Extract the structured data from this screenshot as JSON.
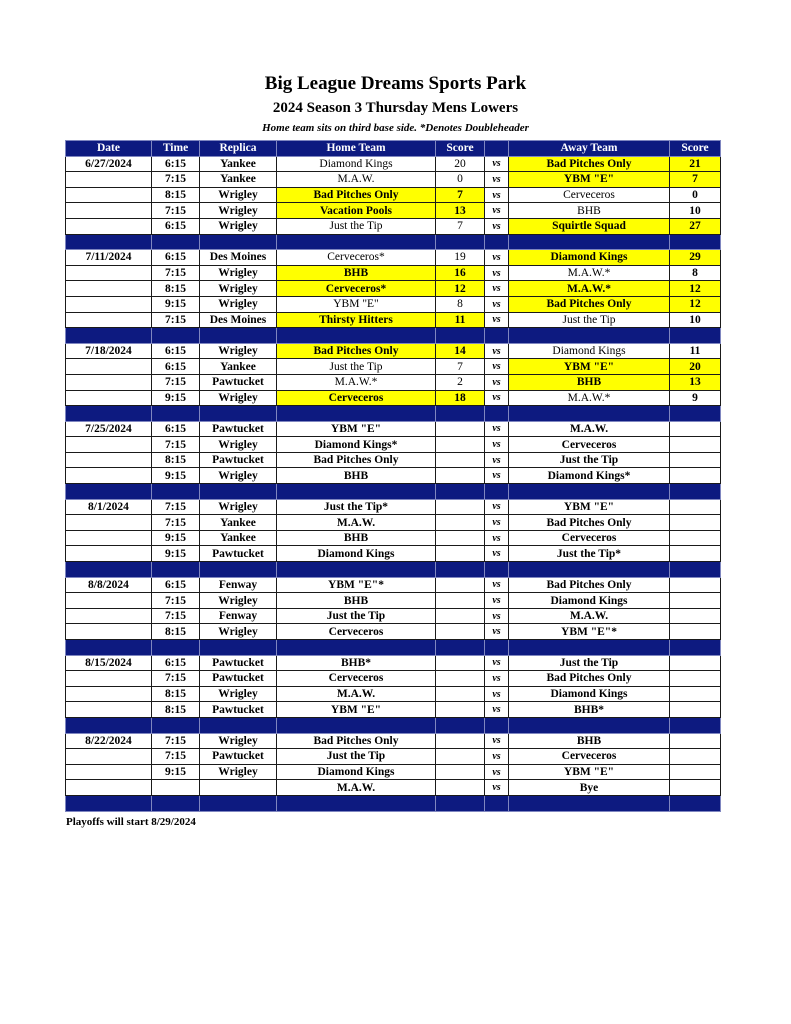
{
  "title": "Big League Dreams Sports Park",
  "subtitle": "2024 Season 3 Thursday Mens Lowers",
  "note": "Home team sits on third base side.  *Denotes Doubleheader",
  "headers": [
    "Date",
    "Time",
    "Replica",
    "Home Team",
    "Score",
    "",
    "Away Team",
    "Score"
  ],
  "vs_label": "vs",
  "footer": "Playoffs will start 8/29/2024",
  "highlight_color": "#ffff00",
  "header_color": "#0d1a80",
  "weeks": [
    {
      "games": [
        {
          "date": "6/27/2024",
          "time": "6:15",
          "replica": "Yankee",
          "home": "Diamond Kings",
          "home_score": "20",
          "away": "Bad Pitches Only",
          "away_score": "21",
          "winner": "away"
        },
        {
          "date": "",
          "time": "7:15",
          "replica": "Yankee",
          "home": "M.A.W.",
          "home_score": "0",
          "away": "YBM \"E\"",
          "away_score": "7",
          "winner": "away"
        },
        {
          "date": "",
          "time": "8:15",
          "replica": "Wrigley",
          "home": "Bad Pitches Only",
          "home_score": "7",
          "away": "Cerveceros",
          "away_score": "0",
          "winner": "home"
        },
        {
          "date": "",
          "time": "7:15",
          "replica": "Wrigley",
          "home": "Vacation Pools",
          "home_score": "13",
          "away": "BHB",
          "away_score": "10",
          "winner": "home"
        },
        {
          "date": "",
          "time": "6:15",
          "replica": "Wrigley",
          "home": "Just the Tip",
          "home_score": "7",
          "away": "Squirtle Squad",
          "away_score": "27",
          "winner": "away"
        }
      ]
    },
    {
      "games": [
        {
          "date": "7/11/2024",
          "time": "6:15",
          "replica": "Des Moines",
          "home": "Cerveceros*",
          "home_score": "19",
          "away": "Diamond Kings",
          "away_score": "29",
          "winner": "away"
        },
        {
          "date": "",
          "time": "7:15",
          "replica": "Wrigley",
          "home": "BHB",
          "home_score": "16",
          "away": "M.A.W.*",
          "away_score": "8",
          "winner": "home"
        },
        {
          "date": "",
          "time": "8:15",
          "replica": "Wrigley",
          "home": "Cerveceros*",
          "home_score": "12",
          "away": "M.A.W.*",
          "away_score": "12",
          "winner": "tie"
        },
        {
          "date": "",
          "time": "9:15",
          "replica": "Wrigley",
          "home": "YBM \"E\"",
          "home_score": "8",
          "away": "Bad Pitches Only",
          "away_score": "12",
          "winner": "away"
        },
        {
          "date": "",
          "time": "7:15",
          "replica": "Des Moines",
          "home": "Thirsty Hitters",
          "home_score": "11",
          "away": "Just the Tip",
          "away_score": "10",
          "winner": "home"
        }
      ]
    },
    {
      "games": [
        {
          "date": "7/18/2024",
          "time": "6:15",
          "replica": "Wrigley",
          "home": "Bad Pitches Only",
          "home_score": "14",
          "away": "Diamond Kings",
          "away_score": "11",
          "winner": "home"
        },
        {
          "date": "",
          "time": "6:15",
          "replica": "Yankee",
          "home": "Just the Tip",
          "home_score": "7",
          "away": "YBM \"E\"",
          "away_score": "20",
          "winner": "away"
        },
        {
          "date": "",
          "time": "7:15",
          "replica": "Pawtucket",
          "home": "M.A.W.*",
          "home_score": "2",
          "away": "BHB",
          "away_score": "13",
          "winner": "away"
        },
        {
          "date": "",
          "time": "9:15",
          "replica": "Wrigley",
          "home": "Cerveceros",
          "home_score": "18",
          "away": "M.A.W.*",
          "away_score": "9",
          "winner": "home"
        }
      ]
    },
    {
      "games": [
        {
          "date": "7/25/2024",
          "time": "6:15",
          "replica": "Pawtucket",
          "home": "YBM \"E\"",
          "home_score": "",
          "away": "M.A.W.",
          "away_score": "",
          "winner": ""
        },
        {
          "date": "",
          "time": "7:15",
          "replica": "Wrigley",
          "home": "Diamond Kings*",
          "home_score": "",
          "away": "Cerveceros",
          "away_score": "",
          "winner": ""
        },
        {
          "date": "",
          "time": "8:15",
          "replica": "Pawtucket",
          "home": "Bad Pitches Only",
          "home_score": "",
          "away": "Just the Tip",
          "away_score": "",
          "winner": ""
        },
        {
          "date": "",
          "time": "9:15",
          "replica": "Wrigley",
          "home": "BHB",
          "home_score": "",
          "away": "Diamond Kings*",
          "away_score": "",
          "winner": ""
        }
      ]
    },
    {
      "games": [
        {
          "date": "8/1/2024",
          "time": "7:15",
          "replica": "Wrigley",
          "home": "Just the Tip*",
          "home_score": "",
          "away": "YBM \"E\"",
          "away_score": "",
          "winner": ""
        },
        {
          "date": "",
          "time": "7:15",
          "replica": "Yankee",
          "home": "M.A.W.",
          "home_score": "",
          "away": "Bad Pitches Only",
          "away_score": "",
          "winner": ""
        },
        {
          "date": "",
          "time": "9:15",
          "replica": "Yankee",
          "home": "BHB",
          "home_score": "",
          "away": "Cerveceros",
          "away_score": "",
          "winner": ""
        },
        {
          "date": "",
          "time": "9:15",
          "replica": "Pawtucket",
          "home": "Diamond Kings",
          "home_score": "",
          "away": "Just the Tip*",
          "away_score": "",
          "winner": ""
        }
      ]
    },
    {
      "games": [
        {
          "date": "8/8/2024",
          "time": "6:15",
          "replica": "Fenway",
          "home": "YBM \"E\"*",
          "home_score": "",
          "away": "Bad Pitches Only",
          "away_score": "",
          "winner": ""
        },
        {
          "date": "",
          "time": "7:15",
          "replica": "Wrigley",
          "home": "BHB",
          "home_score": "",
          "away": "Diamond Kings",
          "away_score": "",
          "winner": ""
        },
        {
          "date": "",
          "time": "7:15",
          "replica": "Fenway",
          "home": "Just the Tip",
          "home_score": "",
          "away": "M.A.W.",
          "away_score": "",
          "winner": ""
        },
        {
          "date": "",
          "time": "8:15",
          "replica": "Wrigley",
          "home": "Cerveceros",
          "home_score": "",
          "away": "YBM \"E\"*",
          "away_score": "",
          "winner": ""
        }
      ]
    },
    {
      "games": [
        {
          "date": "8/15/2024",
          "time": "6:15",
          "replica": "Pawtucket",
          "home": "BHB*",
          "home_score": "",
          "away": "Just the Tip",
          "away_score": "",
          "winner": ""
        },
        {
          "date": "",
          "time": "7:15",
          "replica": "Pawtucket",
          "home": "Cerveceros",
          "home_score": "",
          "away": "Bad Pitches Only",
          "away_score": "",
          "winner": ""
        },
        {
          "date": "",
          "time": "8:15",
          "replica": "Wrigley",
          "home": "M.A.W.",
          "home_score": "",
          "away": "Diamond Kings",
          "away_score": "",
          "winner": ""
        },
        {
          "date": "",
          "time": "8:15",
          "replica": "Pawtucket",
          "home": "YBM \"E\"",
          "home_score": "",
          "away": "BHB*",
          "away_score": "",
          "winner": ""
        }
      ]
    },
    {
      "games": [
        {
          "date": "8/22/2024",
          "time": "7:15",
          "replica": "Wrigley",
          "home": "Bad Pitches Only",
          "home_score": "",
          "away": "BHB",
          "away_score": "",
          "winner": ""
        },
        {
          "date": "",
          "time": "7:15",
          "replica": "Pawtucket",
          "home": "Just the Tip",
          "home_score": "",
          "away": "Cerveceros",
          "away_score": "",
          "winner": ""
        },
        {
          "date": "",
          "time": "9:15",
          "replica": "Wrigley",
          "home": "Diamond Kings",
          "home_score": "",
          "away": "YBM \"E\"",
          "away_score": "",
          "winner": ""
        },
        {
          "date": "",
          "time": "",
          "replica": "",
          "home": "M.A.W.",
          "home_score": "",
          "away": "Bye",
          "away_score": "",
          "winner": ""
        }
      ]
    }
  ]
}
